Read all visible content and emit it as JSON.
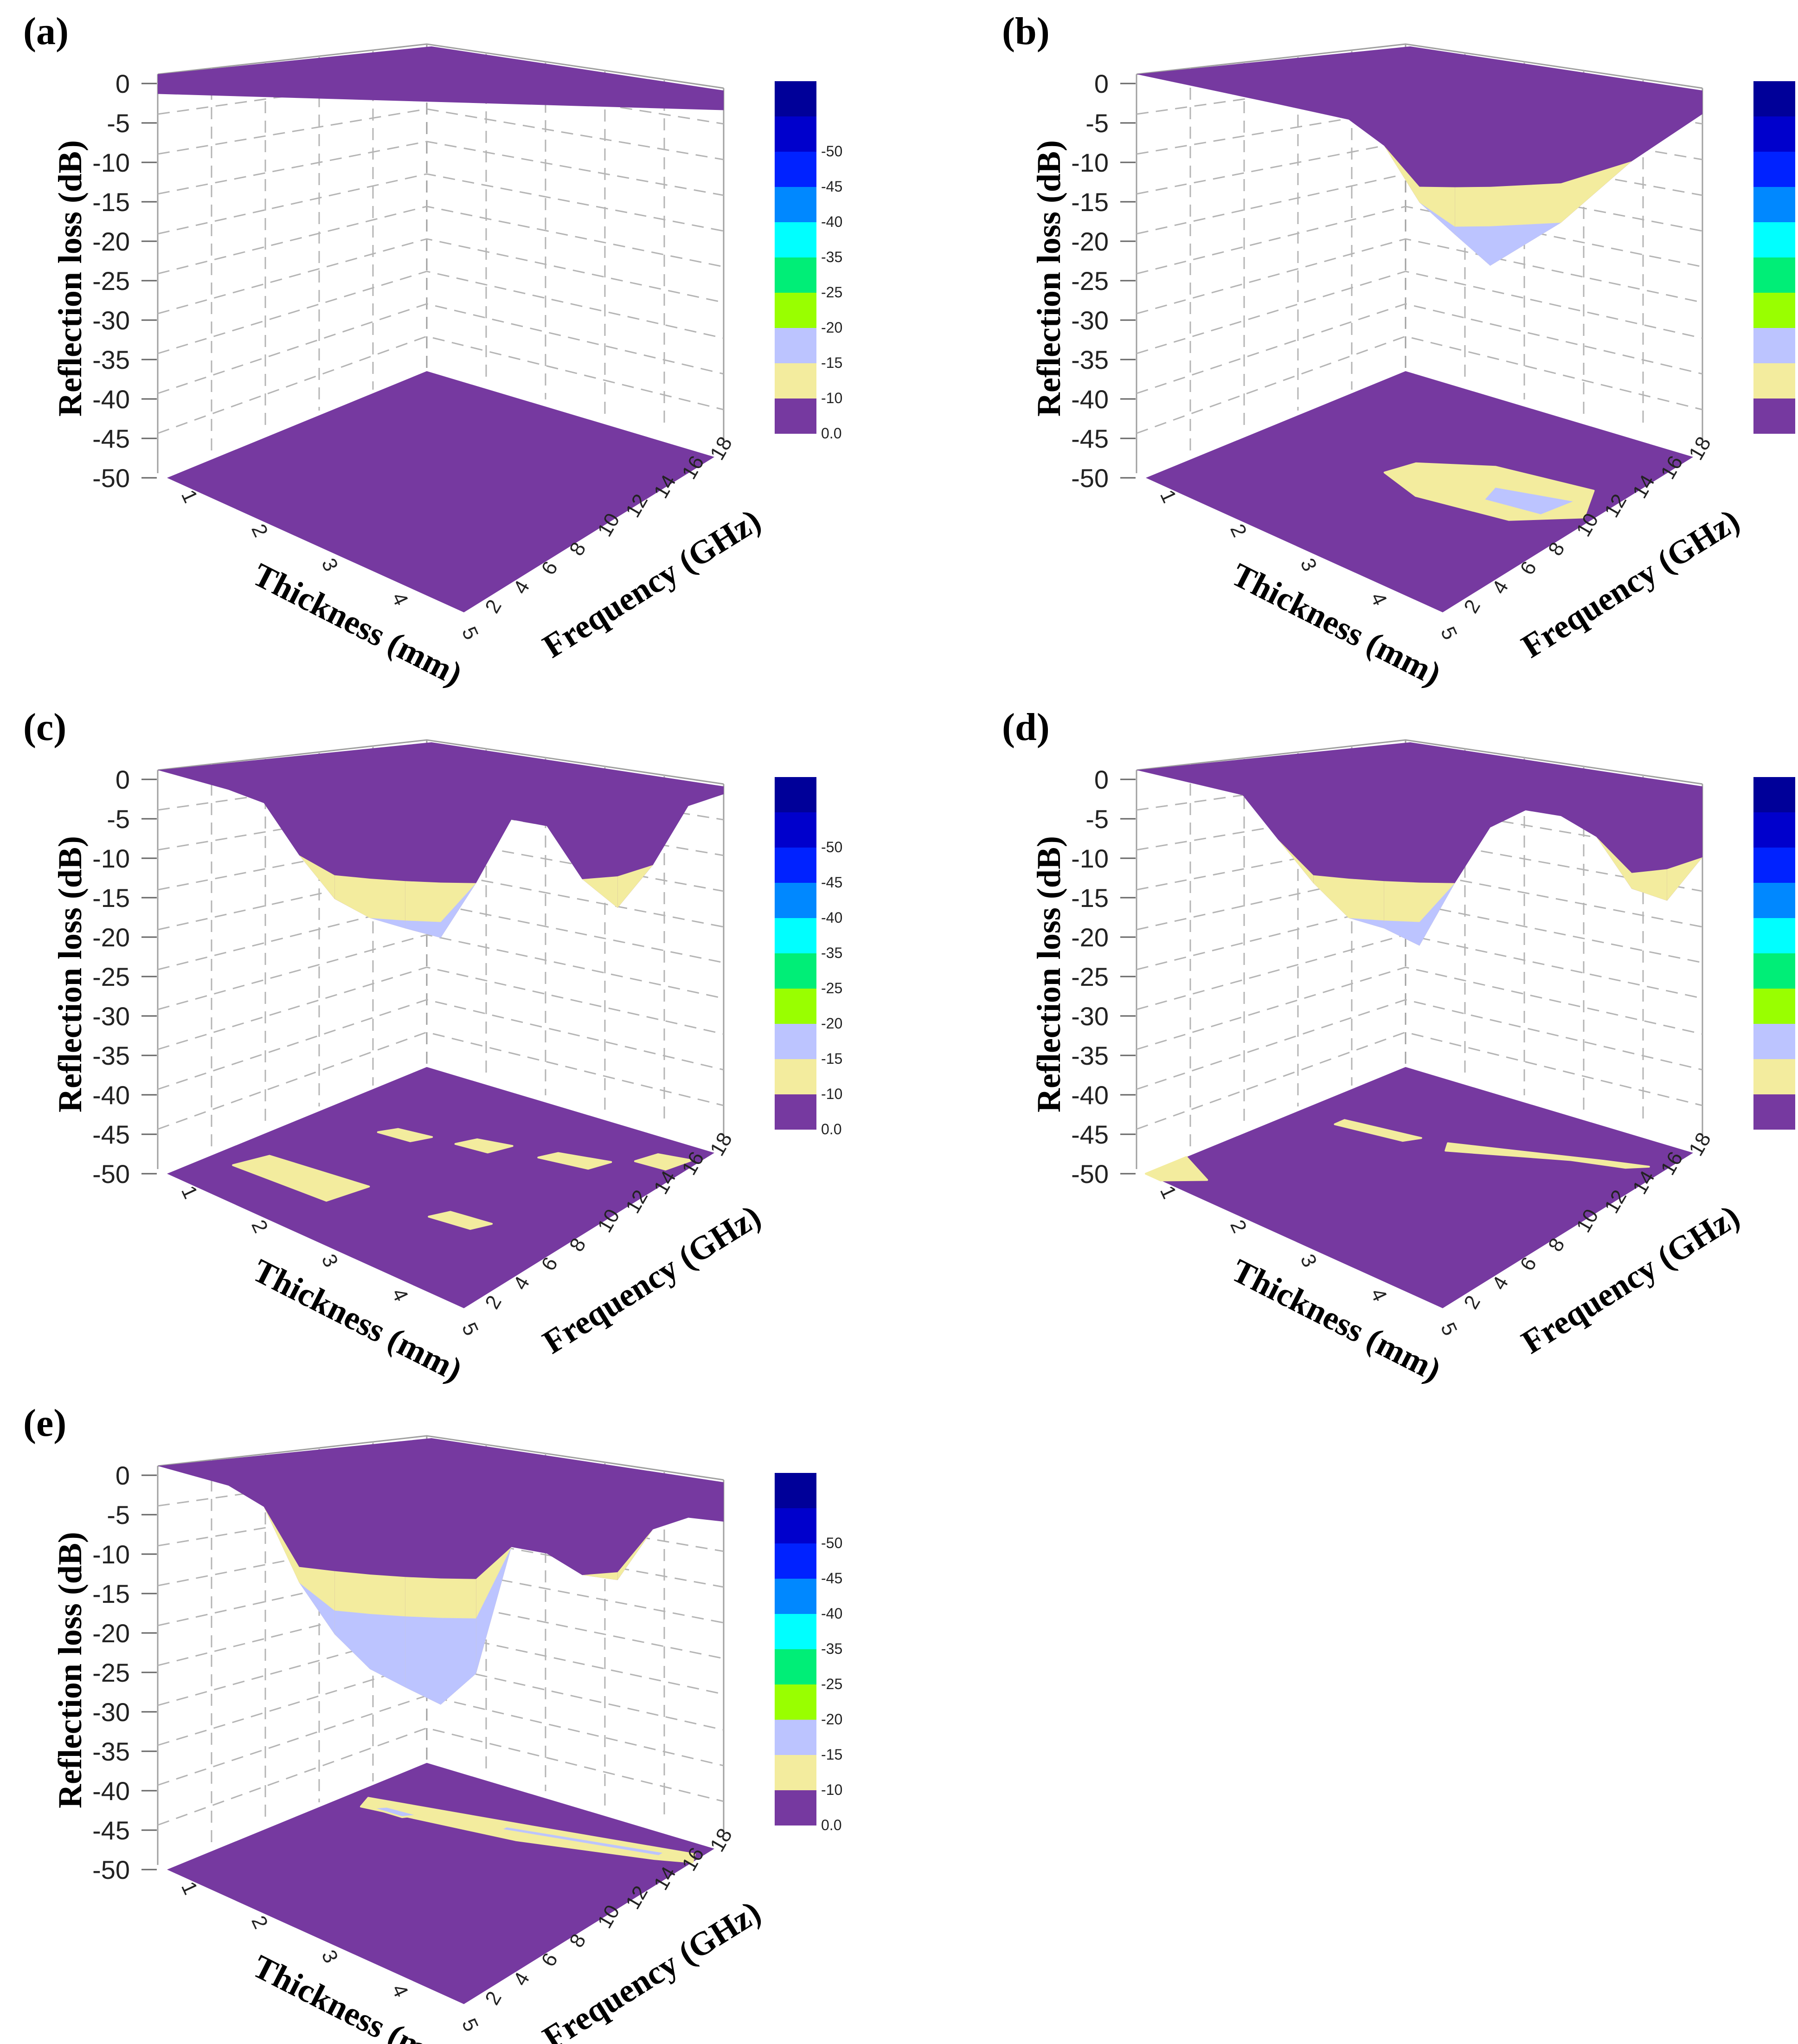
{
  "chart_data": [
    {
      "type": "surface3d",
      "panel_label": "(a)",
      "zlabel": "Reflection loss (dB)",
      "xlabel": "Thickness (mm)",
      "ylabel": "Frequency (GHz)",
      "z_ticks": [
        "0",
        "-5",
        "-10",
        "-15",
        "-20",
        "-25",
        "-30",
        "-35",
        "-40",
        "-45",
        "-50"
      ],
      "thickness_ticks": [
        "1",
        "2",
        "3",
        "4",
        "5"
      ],
      "frequency_ticks": [
        "2",
        "4",
        "6",
        "8",
        "10",
        "12",
        "14",
        "16",
        "18"
      ],
      "zlim": [
        -50,
        0
      ],
      "colorbar": [
        {
          "label": "0.0",
          "color": "#7639a0"
        },
        {
          "label": "-10",
          "color": "#f3ec9e"
        },
        {
          "label": "-15",
          "color": "#bcc4ff"
        },
        {
          "label": "-20",
          "color": "#99ff00"
        },
        {
          "label": "-25",
          "color": "#00ee77"
        },
        {
          "label": "-35",
          "color": "#00ffff"
        },
        {
          "label": "-40",
          "color": "#0088ff"
        },
        {
          "label": "-45",
          "color": "#0022ff"
        },
        {
          "label": "-50",
          "color": "#0000cc"
        },
        {
          "label": "",
          "color": "#000099"
        }
      ],
      "surface_edge": {
        "freq": [
          2,
          18
        ],
        "rl": [
          -2.5,
          -2.5
        ]
      },
      "min_rl": -2.5,
      "floor_regions": []
    },
    {
      "type": "surface3d",
      "panel_label": "(b)",
      "zlabel": "Reflection loss (dB)",
      "xlabel": "Thickness (mm)",
      "ylabel": "Frequency (GHz)",
      "z_ticks": [
        "0",
        "-5",
        "-10",
        "-15",
        "-20",
        "-25",
        "-30",
        "-35",
        "-40",
        "-45",
        "-50"
      ],
      "thickness_ticks": [
        "1",
        "2",
        "3",
        "4",
        "5"
      ],
      "frequency_ticks": [
        "2",
        "4",
        "6",
        "8",
        "10",
        "12",
        "14",
        "16",
        "18"
      ],
      "zlim": [
        -50,
        0
      ],
      "colorbar": [
        {
          "label": "0.0",
          "color": "#7639a0"
        },
        {
          "label": "-10",
          "color": "#f3ec9e"
        },
        {
          "label": "-15",
          "color": "#bcc4ff"
        },
        {
          "label": "-20",
          "color": "#99ff00"
        },
        {
          "label": "-25",
          "color": "#00ee77"
        },
        {
          "label": "-35",
          "color": "#00ffff"
        },
        {
          "label": "-40",
          "color": "#0088ff"
        },
        {
          "label": "-45",
          "color": "#0022ff"
        },
        {
          "label": "-50",
          "color": "#0000cc"
        },
        {
          "label": "",
          "color": "#000099"
        }
      ],
      "surface_edge": {
        "freq": [
          2,
          6,
          8,
          9,
          10,
          11,
          12,
          14,
          16,
          18
        ],
        "rl": [
          0,
          -1,
          -2,
          -5,
          -12,
          -16,
          -20,
          -15,
          -8,
          -3
        ]
      },
      "min_rl": -21,
      "floor_regions": [
        {
          "level": "-10",
          "thickness": [
            2.7,
            3.4,
            4.6,
            4.9,
            4.3,
            3.2,
            2.6
          ],
          "freq": [
            9,
            7.2,
            6.5,
            8.5,
            10.5,
            11.3,
            10.5
          ]
        },
        {
          "level": "-15",
          "thickness": [
            3.7,
            4.6,
            4.5,
            3.8
          ],
          "freq": [
            8.6,
            7.6,
            9.4,
            9.8
          ]
        }
      ]
    },
    {
      "type": "surface3d",
      "panel_label": "(c)",
      "zlabel": "Reflection loss (dB)",
      "xlabel": "Thickness (mm)",
      "ylabel": "Frequency (GHz)",
      "z_ticks": [
        "0",
        "-5",
        "-10",
        "-15",
        "-20",
        "-25",
        "-30",
        "-35",
        "-40",
        "-45",
        "-50"
      ],
      "thickness_ticks": [
        "1",
        "2",
        "3",
        "4",
        "5"
      ],
      "frequency_ticks": [
        "2",
        "4",
        "6",
        "8",
        "10",
        "12",
        "14",
        "16",
        "18"
      ],
      "zlim": [
        -50,
        0
      ],
      "colorbar": [
        {
          "label": "0.0",
          "color": "#7639a0"
        },
        {
          "label": "-10",
          "color": "#f3ec9e"
        },
        {
          "label": "-15",
          "color": "#bcc4ff"
        },
        {
          "label": "-20",
          "color": "#99ff00"
        },
        {
          "label": "-25",
          "color": "#00ee77"
        },
        {
          "label": "-35",
          "color": "#00ffff"
        },
        {
          "label": "-40",
          "color": "#0088ff"
        },
        {
          "label": "-45",
          "color": "#0022ff"
        },
        {
          "label": "-50",
          "color": "#0000cc"
        },
        {
          "label": "",
          "color": "#000099"
        }
      ],
      "surface_edge": {
        "freq": [
          2,
          4,
          5,
          6,
          7,
          8,
          9,
          10,
          11,
          12,
          13,
          14,
          15,
          16,
          17,
          18
        ],
        "rl": [
          0,
          -1,
          -2,
          -8,
          -13,
          -15,
          -16,
          -17,
          -10,
          -2,
          -3,
          -10,
          -14,
          -9,
          -2,
          -1
        ]
      },
      "min_rl": -17,
      "floor_regions": [
        {
          "level": "-10",
          "thickness": [
            4.5,
            4.9,
            4.8,
            4.4
          ],
          "freq": [
            3.3,
            3.0,
            4.2,
            4.3
          ]
        },
        {
          "level": "-10",
          "thickness": [
            3.6,
            4.2,
            4.1,
            3.5
          ],
          "freq": [
            5.5,
            4.9,
            5.9,
            6.3
          ]
        },
        {
          "level": "-10",
          "thickness": [
            2.7,
            3.1,
            3.0,
            2.6
          ],
          "freq": [
            6.5,
            6.1,
            7.2,
            7.4
          ]
        },
        {
          "level": "-10",
          "thickness": [
            1.9,
            2.3,
            2.2,
            1.8
          ],
          "freq": [
            7.8,
            7.5,
            8.4,
            8.6
          ]
        },
        {
          "level": "-10",
          "thickness": [
            1.4,
            2.6,
            2.5,
            1.3
          ],
          "freq": [
            13.5,
            12.8,
            15.0,
            15.3
          ]
        },
        {
          "level": "-10",
          "thickness": [
            3.6,
            4.1,
            4.0,
            3.5
          ],
          "freq": [
            12.3,
            12.0,
            12.9,
            13.2
          ]
        }
      ]
    },
    {
      "type": "surface3d",
      "panel_label": "(d)",
      "zlabel": "Reflection loss (dB)",
      "xlabel": "Thickness (mm)",
      "ylabel": "Frequency (GHz)",
      "z_ticks": [
        "0",
        "-5",
        "-10",
        "-15",
        "-20",
        "-25",
        "-30",
        "-35",
        "-40",
        "-45",
        "-50"
      ],
      "thickness_ticks": [
        "1",
        "2",
        "3",
        "4",
        "5"
      ],
      "frequency_ticks": [
        "2",
        "4",
        "6",
        "8",
        "10",
        "12",
        "14",
        "16",
        "18"
      ],
      "zlim": [
        -50,
        0
      ],
      "colorbar": [
        {
          "label": "0.0",
          "color": "#7639a0"
        },
        {
          "label": "-10",
          "color": "#f3ec9e"
        },
        {
          "label": "-15",
          "color": "#bcc4ff"
        },
        {
          "label": "-20",
          "color": "#99ff00"
        },
        {
          "label": "-25",
          "color": "#00ee77"
        },
        {
          "label": "-35",
          "color": "#00ffff"
        },
        {
          "label": "-40",
          "color": "#0088ff"
        },
        {
          "label": "-45",
          "color": "#0022ff"
        },
        {
          "label": "-50",
          "color": "#0000cc"
        },
        {
          "label": "",
          "color": "#000099"
        }
      ],
      "surface_edge": {
        "freq": [
          2,
          5,
          6,
          7,
          8,
          9,
          10,
          11,
          12,
          13,
          14,
          15,
          16,
          17,
          18
        ],
        "rl": [
          0,
          -1,
          -6,
          -11,
          -15,
          -16,
          -18,
          -10,
          -3,
          -1,
          -2,
          -5,
          -12,
          -14,
          -9
        ]
      },
      "min_rl": -18,
      "floor_regions": [
        {
          "level": "-10",
          "thickness": [
            2.7,
            4.3,
            4.8,
            4.6,
            4.0,
            2.8
          ],
          "freq": [
            7.0,
            4.5,
            3.9,
            4.5,
            5.2,
            7.6
          ]
        },
        {
          "level": "-10",
          "thickness": [
            1.5,
            2.4,
            2.3,
            1.5
          ],
          "freq": [
            8.0,
            7.3,
            8.0,
            8.6
          ]
        },
        {
          "level": "-10",
          "thickness": [
            1.0,
            1.5,
            1.2,
            1.0
          ],
          "freq": [
            15.5,
            16.5,
            18.0,
            18.0
          ]
        }
      ]
    },
    {
      "type": "surface3d",
      "panel_label": "(e)",
      "zlabel": "Reflection loss (dB)",
      "xlabel": "Thickness (mm)",
      "ylabel": "Frequency (GHz)",
      "z_ticks": [
        "0",
        "-5",
        "-10",
        "-15",
        "-20",
        "-25",
        "-30",
        "-35",
        "-40",
        "-45",
        "-50"
      ],
      "thickness_ticks": [
        "1",
        "2",
        "3",
        "4",
        "5"
      ],
      "frequency_ticks": [
        "2",
        "4",
        "6",
        "8",
        "10",
        "12",
        "14",
        "16",
        "18"
      ],
      "zlim": [
        -50,
        0
      ],
      "colorbar": [
        {
          "label": "0.0",
          "color": "#7639a0"
        },
        {
          "label": "-10",
          "color": "#f3ec9e"
        },
        {
          "label": "-15",
          "color": "#bcc4ff"
        },
        {
          "label": "-20",
          "color": "#99ff00"
        },
        {
          "label": "-25",
          "color": "#00ee77"
        },
        {
          "label": "-35",
          "color": "#00ffff"
        },
        {
          "label": "-40",
          "color": "#0088ff"
        },
        {
          "label": "-45",
          "color": "#0022ff"
        },
        {
          "label": "-50",
          "color": "#0000cc"
        },
        {
          "label": "",
          "color": "#000099"
        }
      ],
      "surface_edge": {
        "freq": [
          2,
          4,
          5,
          6,
          7,
          8,
          9,
          10,
          11,
          12,
          13,
          14,
          15,
          16,
          17,
          18
        ],
        "rl": [
          0,
          -1,
          -3,
          -12,
          -18,
          -22,
          -24,
          -26,
          -22,
          -6,
          -7,
          -10,
          -11,
          -5,
          -4,
          -5
        ]
      },
      "min_rl": -29,
      "floor_regions": [
        {
          "level": "-10",
          "thickness": [
            1.2,
            3.0,
            4.9,
            5.0,
            4.6,
            3.1,
            1.3
          ],
          "freq": [
            6.5,
            4.5,
            2.8,
            3.4,
            4.0,
            5.9,
            7.4
          ]
        },
        {
          "level": "-15",
          "thickness": [
            2.8,
            4.6,
            4.6,
            2.8
          ],
          "freq": [
            5.1,
            3.3,
            3.7,
            5.5
          ]
        },
        {
          "level": "-15",
          "thickness": [
            1.5,
            1.9,
            1.8,
            1.4
          ],
          "freq": [
            6.7,
            6.5,
            7.1,
            7.2
          ]
        }
      ]
    }
  ]
}
